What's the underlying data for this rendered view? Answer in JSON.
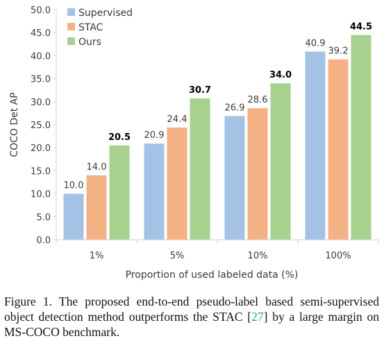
{
  "chart_data": {
    "type": "bar",
    "categories": [
      "1%",
      "5%",
      "10%",
      "100%"
    ],
    "series": [
      {
        "name": "Supervised",
        "values": [
          10.0,
          20.9,
          26.9,
          40.9
        ],
        "color": "#a4c2e6",
        "label_bold": false
      },
      {
        "name": "STAC",
        "values": [
          14.0,
          24.4,
          28.6,
          39.2
        ],
        "color": "#f4b184",
        "label_bold": false
      },
      {
        "name": "Ours",
        "values": [
          20.5,
          30.7,
          34.0,
          44.5
        ],
        "color": "#a9d18e",
        "label_bold": true
      }
    ],
    "xlabel": "Proportion of used labeled data (%)",
    "ylabel": "COCO Det AP",
    "ylim": [
      0,
      50
    ],
    "yticks": [
      "0.0",
      "5.0",
      "10.0",
      "15.0",
      "20.0",
      "25.0",
      "30.0",
      "35.0",
      "40.0",
      "45.0",
      "50.0"
    ],
    "grid": false,
    "legend": "top-left"
  },
  "caption": {
    "prefix": "Figure 1. The proposed end-to-end pseudo-label based semi-supervised object detection method outperforms the STAC [",
    "cite": "27",
    "suffix": "] by a large margin on MS-COCO benchmark."
  }
}
